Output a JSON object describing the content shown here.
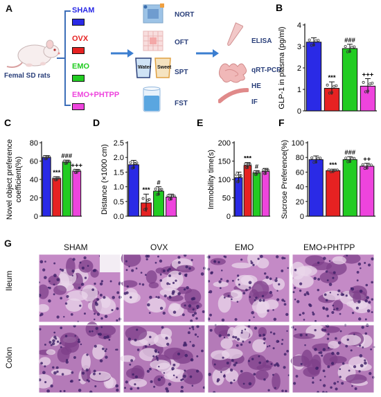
{
  "schematic": {
    "panel_letter": "A",
    "subject": "Femal SD rats",
    "groups": [
      {
        "name": "SHAM",
        "color": "#2a2ae6"
      },
      {
        "name": "OVX",
        "color": "#e62222"
      },
      {
        "name": "EMO",
        "color": "#22cc22"
      },
      {
        "name": "EMO+PHTPP",
        "color": "#ee44dd"
      }
    ],
    "tests": [
      "NORT",
      "OFT",
      "SPT",
      "FST"
    ],
    "spt_bottles": [
      "Water",
      "Sweet"
    ],
    "assays": [
      "ELISA",
      "qRT-PCR",
      "HE",
      "IF"
    ]
  },
  "histology": {
    "panel_letter": "G",
    "columns": [
      "SHAM",
      "OVX",
      "EMO",
      "EMO+PHTPP"
    ],
    "rows": [
      "Ileum",
      "Colon"
    ]
  },
  "chart_data": [
    {
      "panel": "B",
      "type": "bar",
      "ylabel": "GLP-1 in plasma (pg/ml)",
      "ylim": [
        0,
        4
      ],
      "yticks": [
        0,
        1,
        2,
        3,
        4
      ],
      "categories": [
        "SHAM",
        "OVX",
        "EMO",
        "EMO+PHTPP"
      ],
      "values": [
        3.2,
        1.05,
        2.9,
        1.15
      ],
      "errors": [
        0.2,
        0.3,
        0.2,
        0.35
      ],
      "annotations": [
        "",
        "***",
        "###",
        "+++"
      ]
    },
    {
      "panel": "C",
      "type": "bar",
      "ylabel": "Novel object preference coefficient(%)",
      "ylim": [
        0,
        80
      ],
      "yticks": [
        0,
        20,
        40,
        60,
        80
      ],
      "categories": [
        "SHAM",
        "OVX",
        "EMO",
        "EMO+PHTPP"
      ],
      "values": [
        64,
        41,
        59,
        49
      ],
      "errors": [
        2,
        2,
        2,
        2
      ],
      "annotations": [
        "",
        "***",
        "###",
        "+++"
      ]
    },
    {
      "panel": "D",
      "type": "bar",
      "ylabel": "Distance (×1000 cm)",
      "ylim": [
        0,
        2.5
      ],
      "yticks": [
        0.0,
        0.5,
        1.0,
        1.5,
        2.0,
        2.5
      ],
      "categories": [
        "SHAM",
        "OVX",
        "EMO",
        "EMO+PHTPP"
      ],
      "values": [
        1.75,
        0.45,
        0.85,
        0.65
      ],
      "errors": [
        0.15,
        0.3,
        0.15,
        0.1
      ],
      "annotations": [
        "",
        "***",
        "#",
        ""
      ]
    },
    {
      "panel": "E",
      "type": "bar",
      "ylabel": "Immobility time(s)",
      "ylim": [
        0,
        200
      ],
      "yticks": [
        0,
        50,
        100,
        150,
        200
      ],
      "categories": [
        "SHAM",
        "OVX",
        "EMO",
        "EMO+PHTPP"
      ],
      "values": [
        105,
        138,
        118,
        122
      ],
      "errors": [
        15,
        8,
        6,
        8
      ],
      "annotations": [
        "",
        "***",
        "#",
        ""
      ]
    },
    {
      "panel": "F",
      "type": "bar",
      "ylabel": "Sucrose Preference(%)",
      "ylim": [
        0,
        100
      ],
      "yticks": [
        0,
        20,
        40,
        60,
        80,
        100
      ],
      "categories": [
        "SHAM",
        "OVX",
        "EMO",
        "EMO+PHTPP"
      ],
      "values": [
        77,
        62,
        77,
        68
      ],
      "errors": [
        5,
        2,
        4,
        4
      ],
      "annotations": [
        "",
        "***",
        "###",
        "++"
      ]
    }
  ]
}
